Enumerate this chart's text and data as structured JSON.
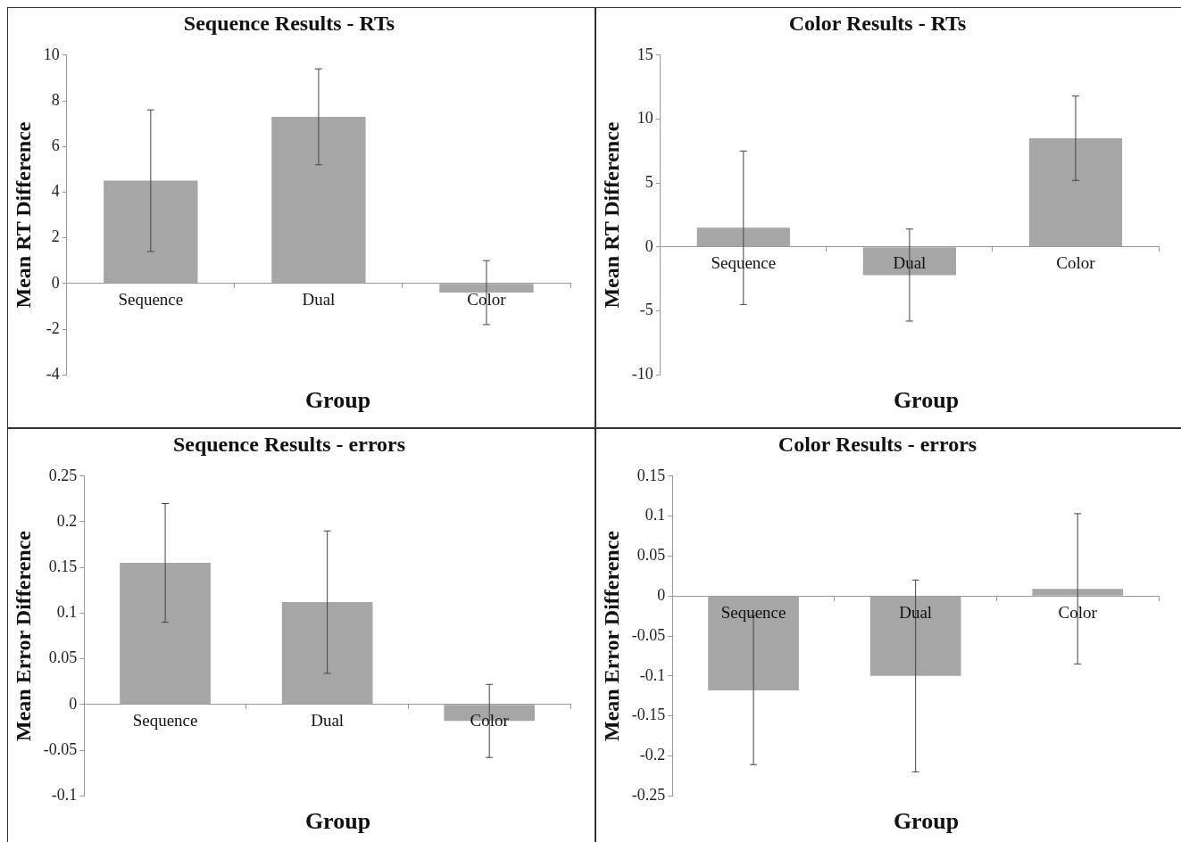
{
  "chart_data": [
    {
      "type": "bar",
      "title": "Sequence Results - RTs",
      "xlabel": "Group",
      "ylabel": "Mean RT Difference",
      "categories": [
        "Sequence",
        "Dual",
        "Color"
      ],
      "values": [
        4.5,
        7.3,
        -0.4
      ],
      "errors": [
        3.1,
        2.1,
        1.4
      ],
      "color": "#a6a6a6",
      "ylim": [
        -4,
        10
      ],
      "yticks": [
        -4,
        -2,
        0,
        2,
        4,
        6,
        8,
        10
      ]
    },
    {
      "type": "bar",
      "title": "Color Results - RTs",
      "xlabel": "Group",
      "ylabel": "Mean RT Difference",
      "categories": [
        "Sequence",
        "Dual",
        "Color"
      ],
      "values": [
        1.5,
        -2.2,
        8.5
      ],
      "errors": [
        6,
        3.6,
        3.3
      ],
      "color": "#a6a6a6",
      "ylim": [
        -10,
        15
      ],
      "yticks": [
        -10,
        -5,
        0,
        5,
        10,
        15
      ]
    },
    {
      "type": "bar",
      "title": "Sequence Results - errors",
      "xlabel": "Group",
      "ylabel": "Mean Error Difference",
      "categories": [
        "Sequence",
        "Dual",
        "Color"
      ],
      "values": [
        0.155,
        0.112,
        -0.018
      ],
      "errors": [
        0.065,
        0.078,
        0.04
      ],
      "color": "#a6a6a6",
      "ylim": [
        -0.1,
        0.25
      ],
      "yticks": [
        -0.1,
        -0.05,
        0,
        0.05,
        0.1,
        0.15,
        0.2,
        0.25
      ]
    },
    {
      "type": "bar",
      "title": "Color Results - errors",
      "xlabel": "Group",
      "ylabel": "Mean Error Difference",
      "categories": [
        "Sequence",
        "Dual",
        "Color"
      ],
      "values": [
        -0.118,
        -0.1,
        0.009
      ],
      "errors": [
        0.093,
        0.12,
        0.094
      ],
      "color": "#a6a6a6",
      "ylim": [
        -0.25,
        0.15
      ],
      "yticks": [
        -0.25,
        -0.2,
        -0.15,
        -0.1,
        -0.05,
        0,
        0.05,
        0.1,
        0.15
      ]
    }
  ]
}
